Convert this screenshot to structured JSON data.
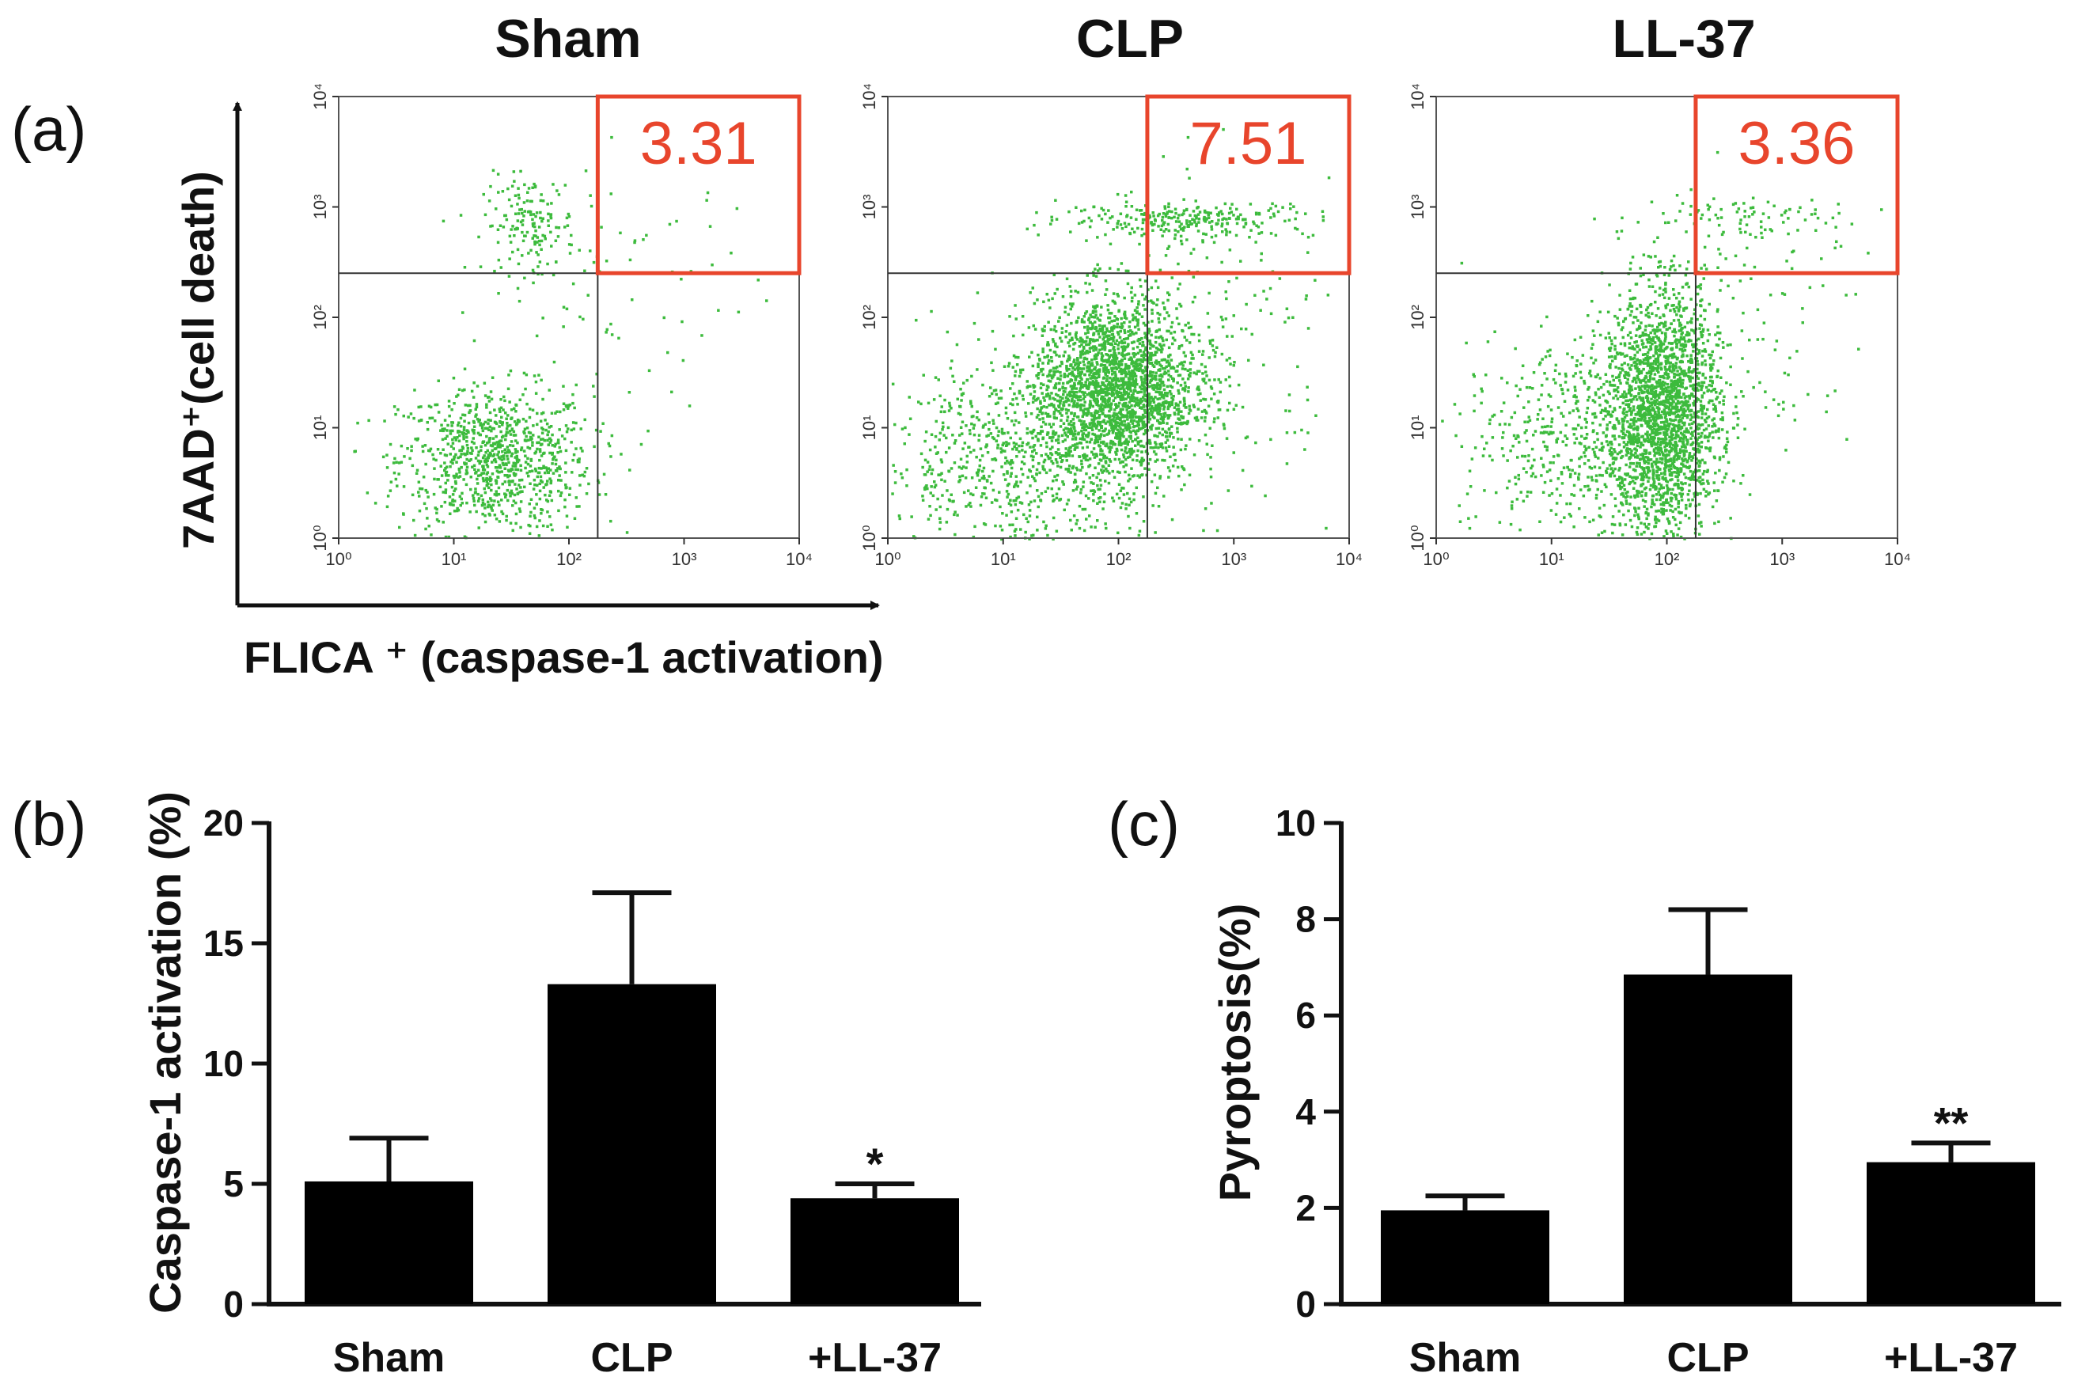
{
  "panel_labels": {
    "a": "(a)",
    "b": "(b)",
    "c": "(c)"
  },
  "flow": {
    "x_axis_title": "FLICA ⁺ (caspase-1 activation)",
    "y_axis_title": "7AAD⁺(cell death)",
    "tick_labels": [
      "10⁰",
      "10¹",
      "10²",
      "10³",
      "10⁴"
    ],
    "colors": {
      "dots": "#3dbb3d",
      "gate": "#e8452c",
      "frame": "#555555"
    },
    "panels": [
      {
        "title": "Sham",
        "gate_value": "3.31"
      },
      {
        "title": "CLP",
        "gate_value": "7.51"
      },
      {
        "title": "LL-37",
        "gate_value": "3.36"
      }
    ]
  },
  "chart_data": [
    {
      "type": "bar",
      "panel": "b",
      "categories": [
        "Sham",
        "CLP",
        "+LL-37"
      ],
      "values": [
        5.1,
        13.3,
        4.4
      ],
      "errors": [
        1.8,
        3.8,
        0.6
      ],
      "significance": [
        "",
        "",
        "*"
      ],
      "ylabel": "Caspase-1 activation (%)",
      "ylim": [
        0,
        20
      ],
      "yticks": [
        "0",
        "5",
        "10",
        "15",
        "20"
      ]
    },
    {
      "type": "bar",
      "panel": "c",
      "categories": [
        "Sham",
        "CLP",
        "+LL-37"
      ],
      "values": [
        1.95,
        6.85,
        2.95
      ],
      "errors": [
        0.3,
        1.35,
        0.4
      ],
      "significance": [
        "",
        "",
        "**"
      ],
      "ylabel": "Pyroptosis(%)",
      "ylim": [
        0,
        10
      ],
      "yticks": [
        "0",
        "2",
        "4",
        "6",
        "8",
        "10"
      ]
    }
  ]
}
